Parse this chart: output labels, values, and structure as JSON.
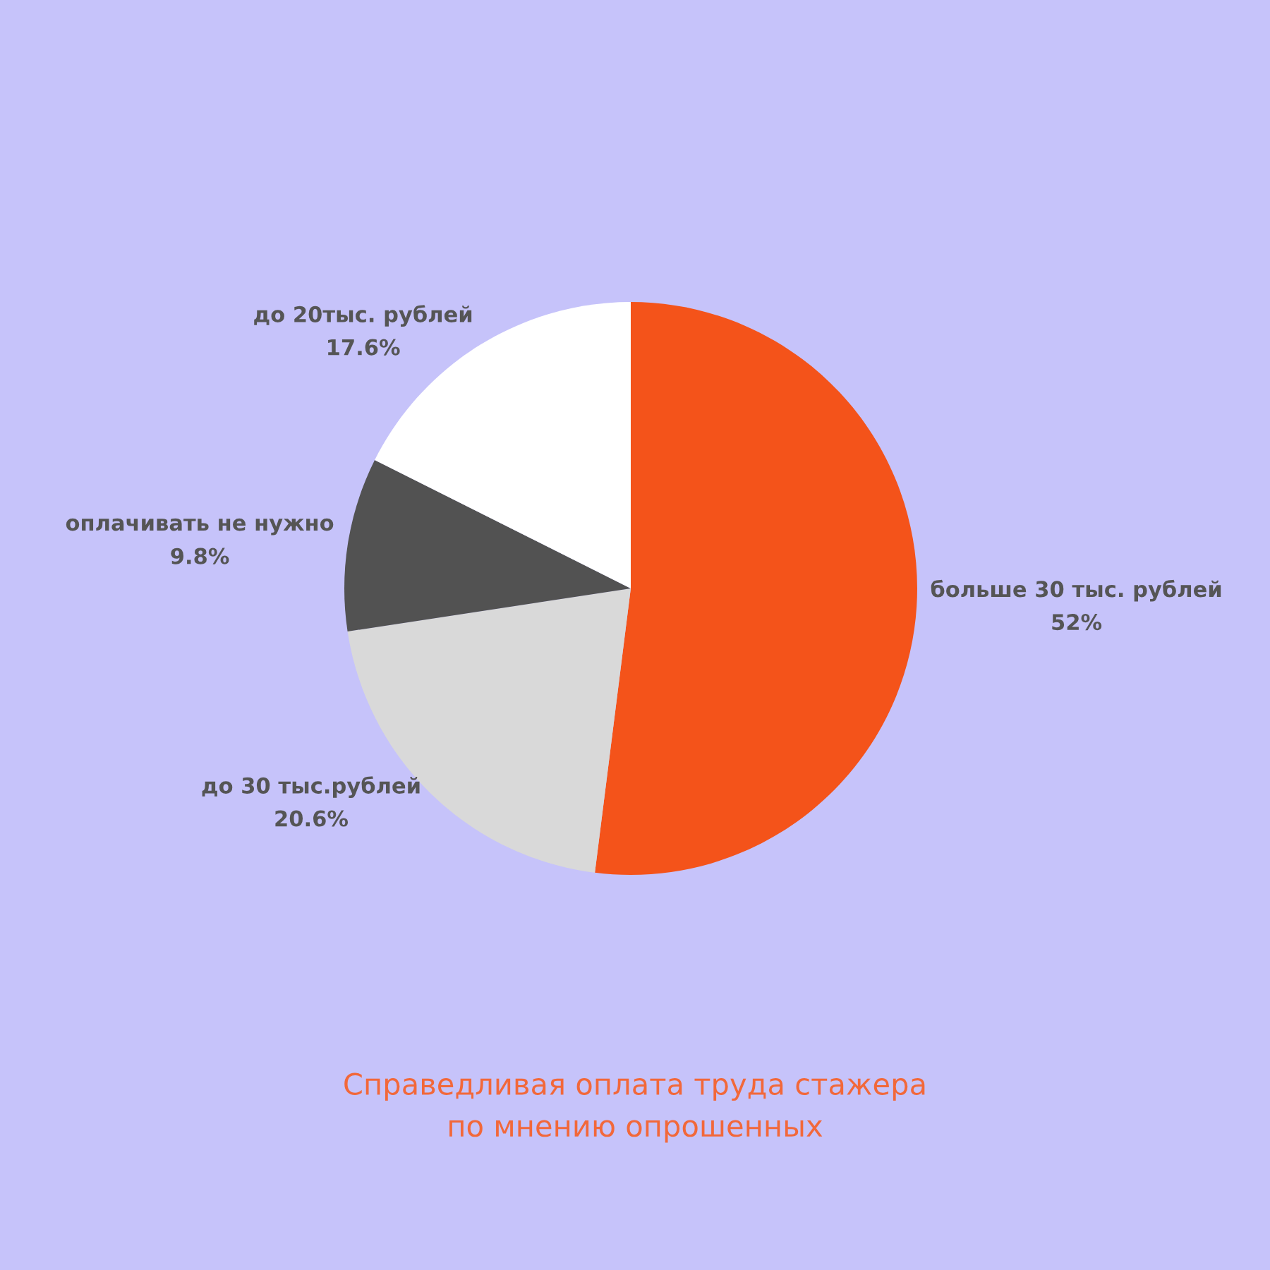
{
  "chart_data": {
    "type": "pie",
    "title": "Справедливая оплата труда стажера\nпо мнению опрошенных",
    "categories": [
      "больше 30 тыс. рублей",
      "до 30 тыс.рублей",
      "оплачивать не нужно",
      "до 20тыс. рублей"
    ],
    "values": [
      52,
      20.6,
      9.8,
      17.6
    ],
    "value_labels": [
      "52%",
      "20.6%",
      "9.8%",
      "17.6%"
    ],
    "colors": [
      "#f4531a",
      "#d9d9d9",
      "#525252",
      "#ffffff"
    ]
  }
}
